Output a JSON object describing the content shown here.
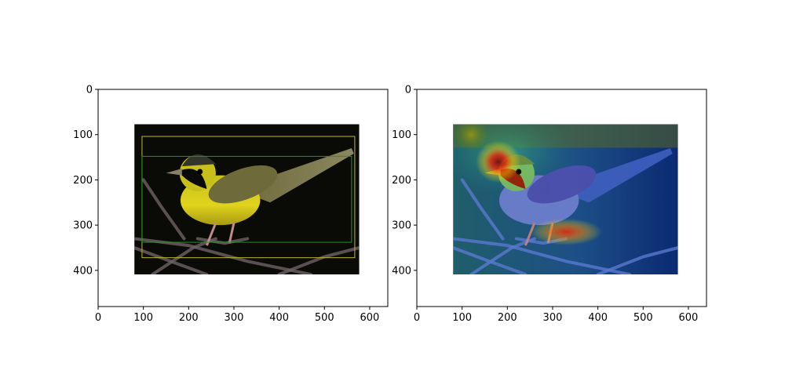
{
  "chart_data": [
    {
      "type": "image",
      "panel": "left",
      "xlim": [
        0,
        640
      ],
      "ylim": [
        480,
        0
      ],
      "xticks": [
        0,
        100,
        200,
        300,
        400,
        500,
        600
      ],
      "yticks": [
        0,
        100,
        200,
        300,
        400
      ],
      "image_extent": {
        "x0": 80,
        "x1": 577,
        "y0": 77,
        "y1": 409
      },
      "image_content": "photo of yellow bird with black mask perched on branch, dark background",
      "boxes": [
        {
          "name": "yellow-box",
          "color": "#bcb92b",
          "x0": 97,
          "x1": 567,
          "y0": 104,
          "y1": 372
        },
        {
          "name": "green-box",
          "color": "#1a9a1a",
          "x0": 97,
          "x1": 560,
          "y0": 148,
          "y1": 338
        }
      ]
    },
    {
      "type": "heatmap",
      "panel": "right",
      "xlim": [
        0,
        640
      ],
      "ylim": [
        480,
        0
      ],
      "xticks": [
        0,
        100,
        200,
        300,
        400,
        500,
        600
      ],
      "yticks": [
        0,
        100,
        200,
        300,
        400
      ],
      "image_extent": {
        "x0": 80,
        "x1": 577,
        "y0": 77,
        "y1": 409
      },
      "image_content": "jet colormap attention overlay on bird photo",
      "hotspots": [
        {
          "x": 180,
          "y": 160,
          "intensity": 1.0
        },
        {
          "x": 330,
          "y": 315,
          "intensity": 0.9
        },
        {
          "x": 120,
          "y": 100,
          "intensity": 0.55
        }
      ],
      "colors": [
        "#00007f",
        "#0000ff",
        "#00ffff",
        "#7fff7f",
        "#ffff00",
        "#ff0000",
        "#7f0000"
      ]
    }
  ]
}
